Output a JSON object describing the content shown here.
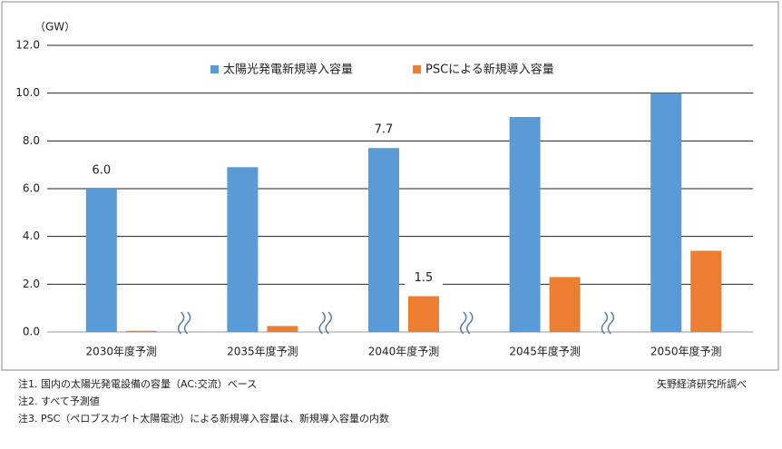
{
  "chart_data": {
    "type": "bar",
    "y_unit_label": "（GW）",
    "categories": [
      "2030年度予測",
      "2035年度予測",
      "2040年度予測",
      "2045年度予測",
      "2050年度予測"
    ],
    "series": [
      {
        "name": "太陽光発電新規導入容量",
        "color": "#5b9bd5",
        "values": [
          6.0,
          6.9,
          7.7,
          9.0,
          10.0
        ],
        "value_labels": [
          "6.0",
          null,
          "7.7",
          null,
          null
        ]
      },
      {
        "name": "PSCによる新規導入容量",
        "color": "#ed7d31",
        "values": [
          0.05,
          0.25,
          1.5,
          2.3,
          3.4
        ],
        "value_labels": [
          null,
          null,
          "1.5",
          null,
          null
        ]
      }
    ],
    "ylim": [
      0,
      12
    ],
    "yticks": [
      {
        "value": 0,
        "label": "0.0"
      },
      {
        "value": 2,
        "label": "2.0"
      },
      {
        "value": 4,
        "label": "4.0"
      },
      {
        "value": 6,
        "label": "6.0"
      },
      {
        "value": 8,
        "label": "8.0"
      },
      {
        "value": 10,
        "label": "10.0"
      },
      {
        "value": 12,
        "label": "12.0"
      }
    ],
    "grid": true
  },
  "notes": [
    "注1.  国内の太陽光発電設備の容量（AC:交流）ベース",
    "注2.  すべて予測値",
    "注3.  PSC（ペロブスカイト太陽電池）による新規導入容量は、新規導入容量の内数"
  ],
  "source": "矢野経済研究所調べ"
}
